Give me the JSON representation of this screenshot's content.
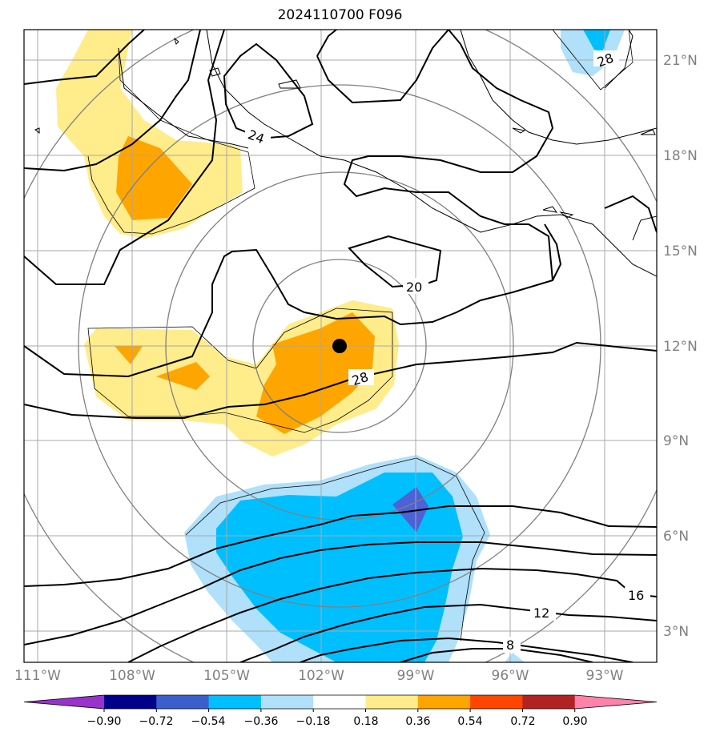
{
  "title": "2024110700 F096",
  "lon_labels": [
    "111°W",
    "108°W",
    "105°W",
    "102°W",
    "99°W",
    "96°W",
    "93°W"
  ],
  "lat_labels": [
    "21°N",
    "18°N",
    "15°N",
    "12°N",
    "9°N",
    "6°N",
    "3°N"
  ],
  "contour_labels": [
    "24",
    "20",
    "28",
    "28",
    "16",
    "12",
    "8"
  ],
  "colorbar": {
    "ticks": [
      "−0.90",
      "−0.72",
      "−0.54",
      "−0.36",
      "−0.18",
      "0.18",
      "0.36",
      "0.54",
      "0.72",
      "0.90"
    ],
    "colors": [
      "#9932cc",
      "#00008b",
      "#3a5fcd",
      "#00bfff",
      "#b0e0fa",
      "#ffffff",
      "#ffec8b",
      "#ffa500",
      "#ff4500",
      "#b22222",
      "#ff82ab"
    ]
  },
  "fill_colors": {
    "light_yellow": "#ffec8b",
    "orange": "#ffa500",
    "light_blue": "#b0e0fa",
    "blue": "#00bfff",
    "royal_blue": "#4c62d6"
  },
  "center_marker": {
    "lon": -101.7,
    "lat": 12.0
  }
}
